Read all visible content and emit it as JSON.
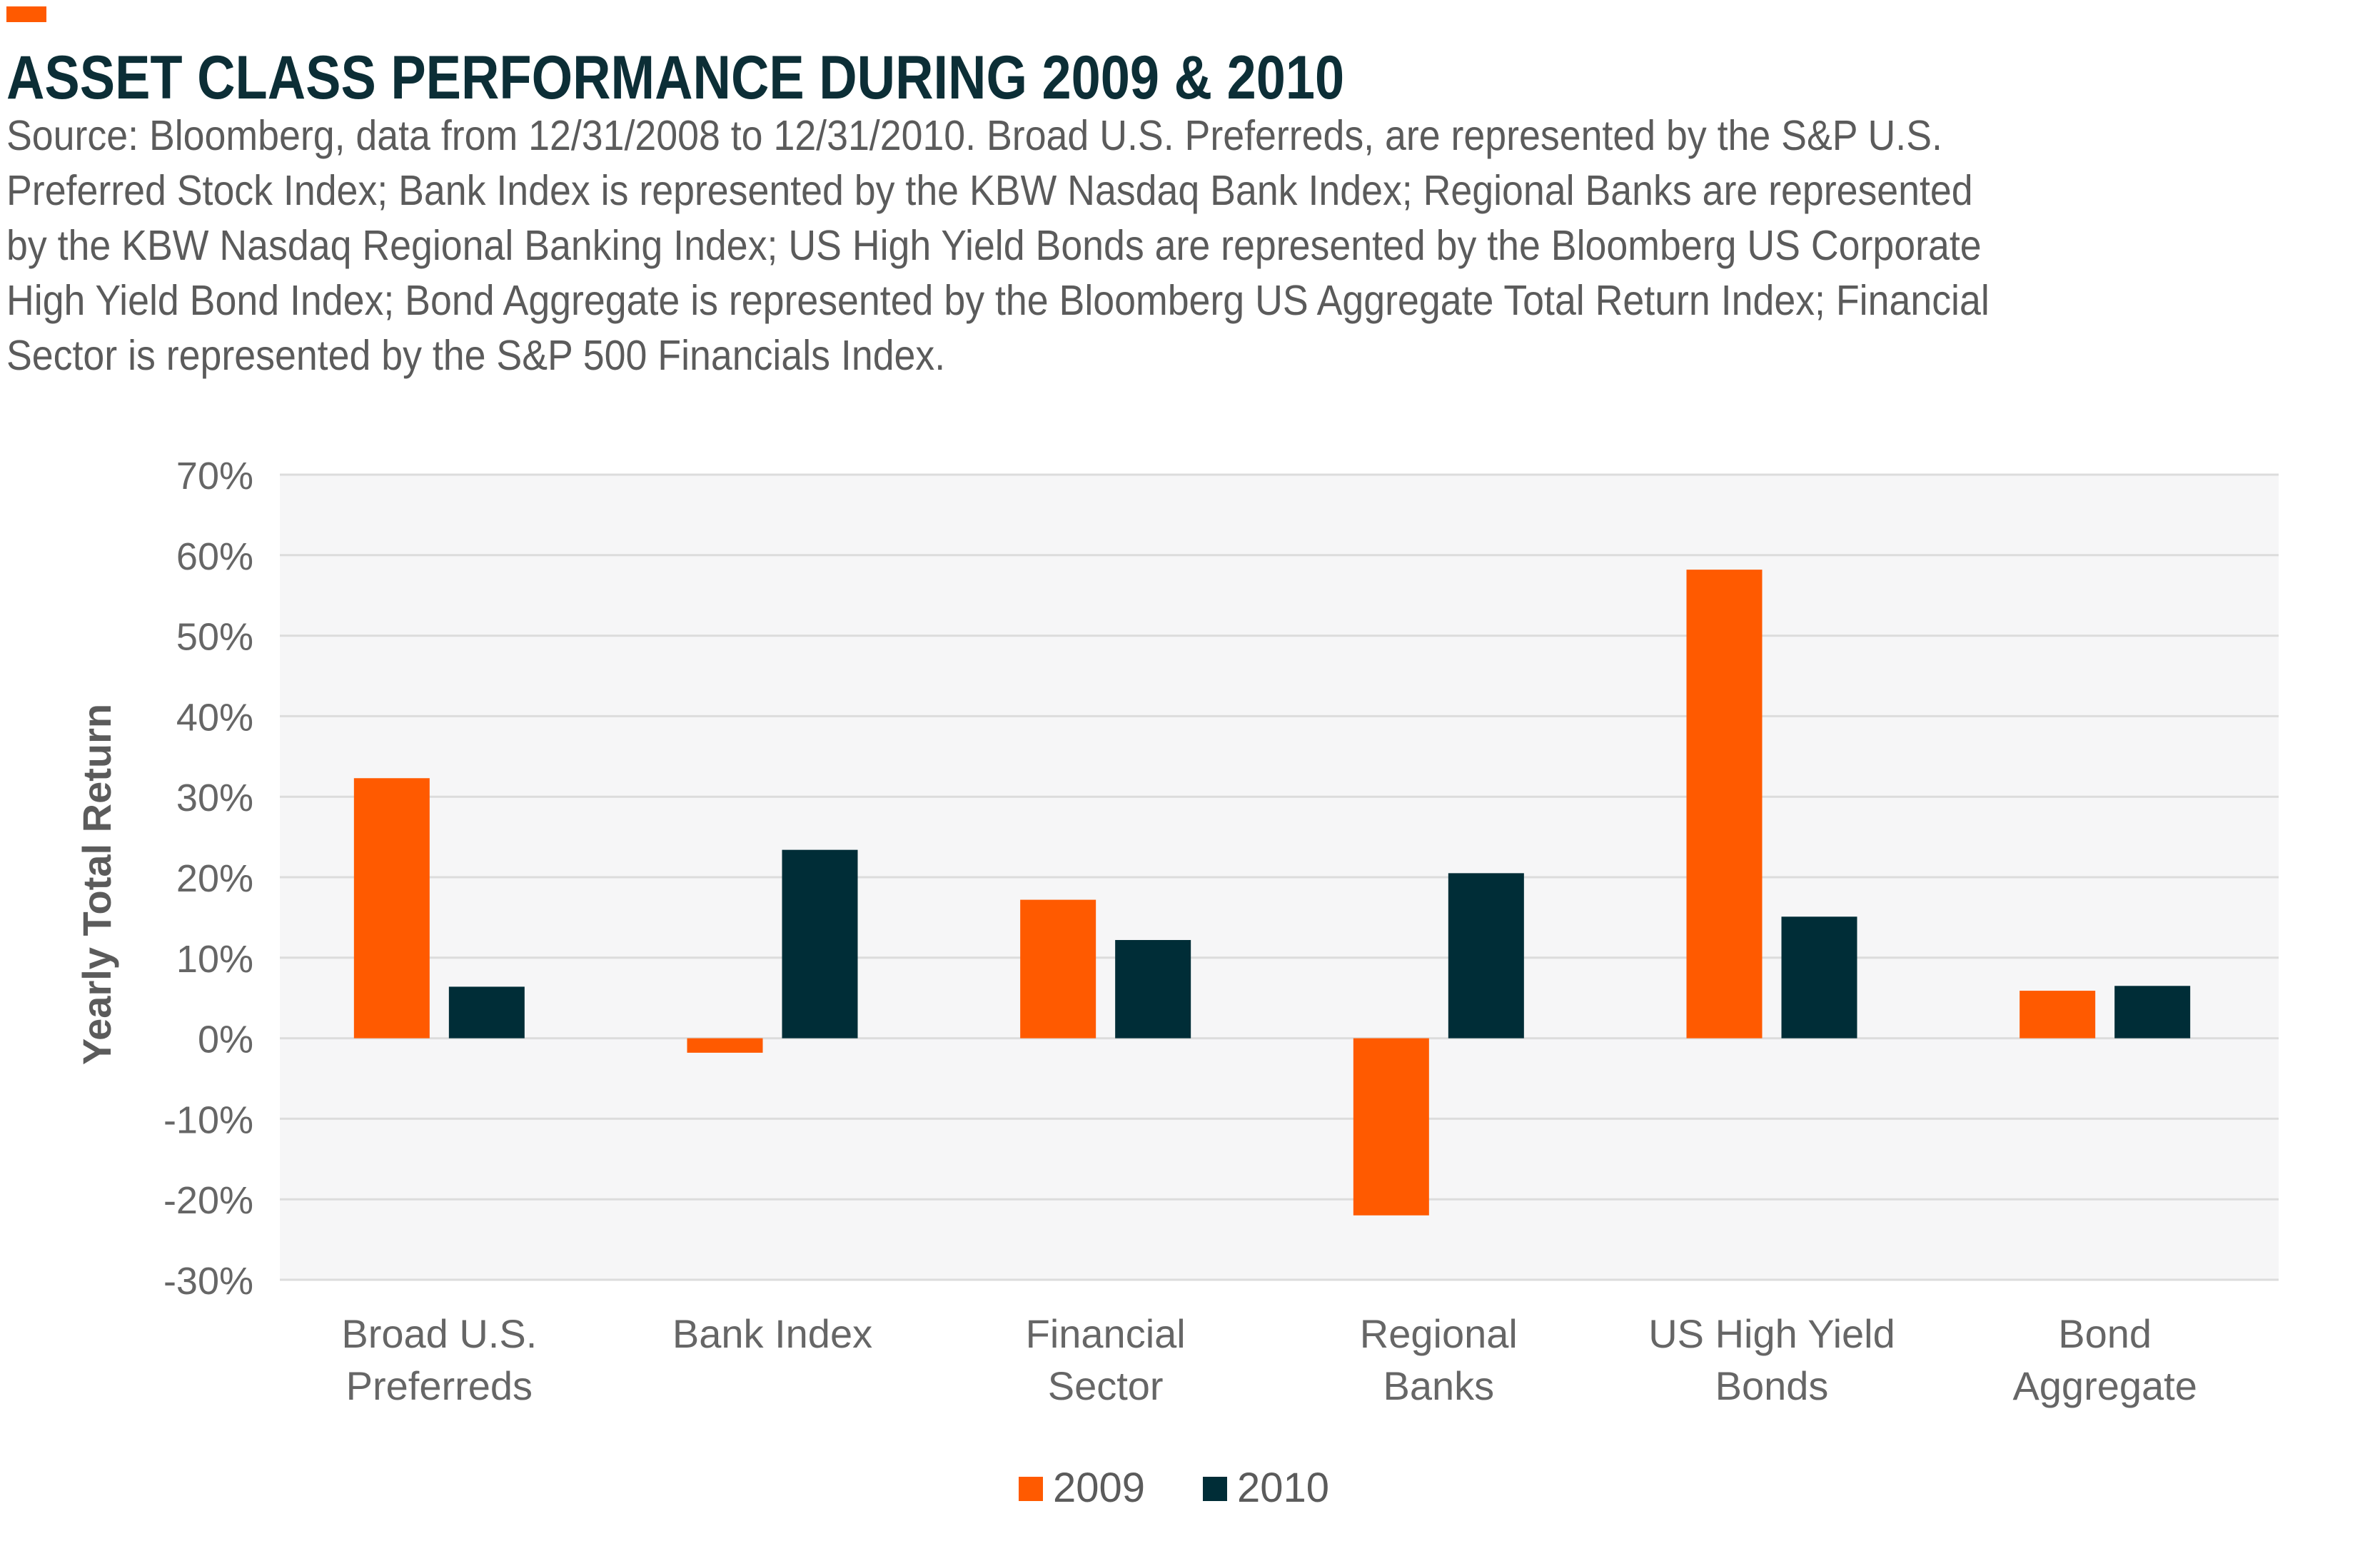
{
  "header": {
    "title": "ASSET CLASS PERFORMANCE DURING 2009 & 2010",
    "subtitle_lines": [
      "Source: Bloomberg, data from 12/31/2008 to 12/31/2010. Broad U.S. Preferreds, are represented by the S&P U.S.",
      "Preferred Stock Index; Bank Index is represented by the KBW Nasdaq Bank Index; Regional Banks are represented",
      "by the KBW Nasdaq Regional Banking Index; US High Yield Bonds are represented by the Bloomberg US Corporate",
      "High Yield Bond Index; Bond Aggregate is represented by the Bloomberg US Aggregate Total Return Index; Financial",
      " Sector is represented by the S&P 500 Financials Index."
    ]
  },
  "chart_data": {
    "type": "bar",
    "categories": [
      [
        "Broad U.S.",
        "Preferreds"
      ],
      [
        "Bank Index"
      ],
      [
        "Financial",
        "Sector"
      ],
      [
        "Regional",
        "Banks"
      ],
      [
        "US High Yield",
        "Bonds"
      ],
      [
        "Bond",
        "Aggregate"
      ]
    ],
    "series": [
      {
        "name": "2009",
        "color": "#ff5a00",
        "values": [
          32.3,
          -1.8,
          17.2,
          -22.0,
          58.2,
          5.9
        ]
      },
      {
        "name": "2010",
        "color": "#002d37",
        "values": [
          6.4,
          23.4,
          12.2,
          20.5,
          15.1,
          6.5
        ]
      }
    ],
    "ylabel": "Yearly Total Return",
    "xlabel": "",
    "ylim": [
      -30,
      70
    ],
    "yticks": [
      70,
      60,
      50,
      40,
      30,
      20,
      10,
      0,
      -10,
      -20,
      -30
    ],
    "ytick_labels": [
      "70%",
      "60%",
      "50%",
      "40%",
      "30%",
      "20%",
      "10%",
      "0%",
      "-10%",
      "-20%",
      "-30%"
    ],
    "grid": true,
    "legend": "bottom-center",
    "plot_background": "#f6f6f7",
    "gridline_color": "#dcdcdc"
  }
}
